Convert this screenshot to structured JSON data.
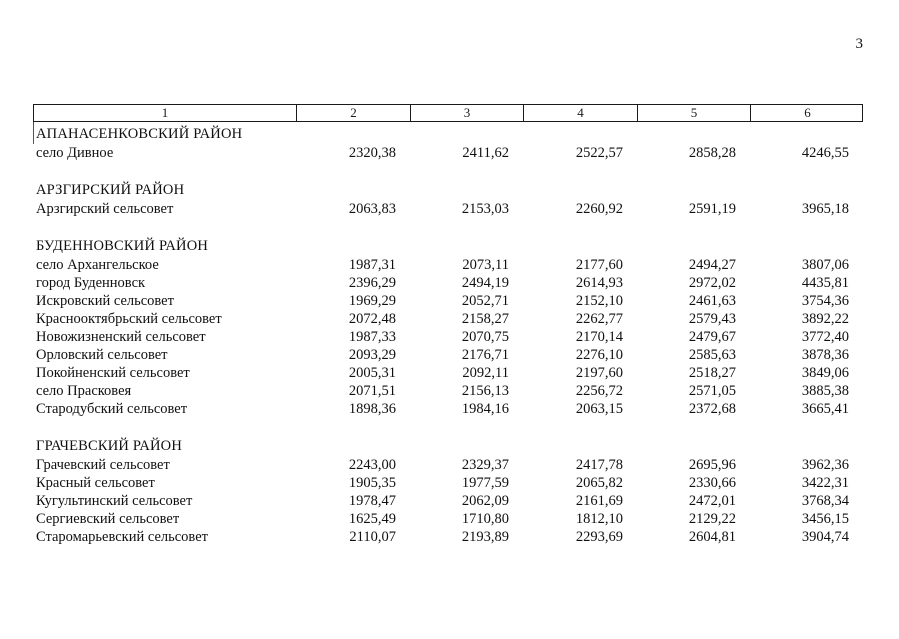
{
  "page_number": "3",
  "table": {
    "header": [
      "1",
      "2",
      "3",
      "4",
      "5",
      "6"
    ],
    "sections": [
      {
        "title": "АПАНАСЕНКОВСКИЙ РАЙОН",
        "rows": [
          {
            "name": "село Дивное",
            "values": [
              "2320,38",
              "2411,62",
              "2522,57",
              "2858,28",
              "4246,55"
            ]
          }
        ]
      },
      {
        "title": "АРЗГИРСКИЙ РАЙОН",
        "rows": [
          {
            "name": "Арзгирский сельсовет",
            "values": [
              "2063,83",
              "2153,03",
              "2260,92",
              "2591,19",
              "3965,18"
            ]
          }
        ]
      },
      {
        "title": "БУДЕННОВСКИЙ РАЙОН",
        "rows": [
          {
            "name": "село Архангельское",
            "values": [
              "1987,31",
              "2073,11",
              "2177,60",
              "2494,27",
              "3807,06"
            ]
          },
          {
            "name": "город Буденновск",
            "values": [
              "2396,29",
              "2494,19",
              "2614,93",
              "2972,02",
              "4435,81"
            ]
          },
          {
            "name": "Искровский сельсовет",
            "values": [
              "1969,29",
              "2052,71",
              "2152,10",
              "2461,63",
              "3754,36"
            ]
          },
          {
            "name": "Краснооктябрьский сельсовет",
            "values": [
              "2072,48",
              "2158,27",
              "2262,77",
              "2579,43",
              "3892,22"
            ]
          },
          {
            "name": "Новожизненский сельсовет",
            "values": [
              "1987,33",
              "2070,75",
              "2170,14",
              "2479,67",
              "3772,40"
            ]
          },
          {
            "name": "Орловский сельсовет",
            "values": [
              "2093,29",
              "2176,71",
              "2276,10",
              "2585,63",
              "3878,36"
            ]
          },
          {
            "name": "Покойненский сельсовет",
            "values": [
              "2005,31",
              "2092,11",
              "2197,60",
              "2518,27",
              "3849,06"
            ]
          },
          {
            "name": "село Прасковея",
            "values": [
              "2071,51",
              "2156,13",
              "2256,72",
              "2571,05",
              "3885,38"
            ]
          },
          {
            "name": "Стародубский сельсовет",
            "values": [
              "1898,36",
              "1984,16",
              "2063,15",
              "2372,68",
              "3665,41"
            ]
          }
        ]
      },
      {
        "title": "ГРАЧЕВСКИЙ РАЙОН",
        "rows": [
          {
            "name": "Грачевский сельсовет",
            "values": [
              "2243,00",
              "2329,37",
              "2417,78",
              "2695,96",
              "3962,36"
            ]
          },
          {
            "name": "Красный сельсовет",
            "values": [
              "1905,35",
              "1977,59",
              "2065,82",
              "2330,66",
              "3422,31"
            ]
          },
          {
            "name": "Кугультинский сельсовет",
            "values": [
              "1978,47",
              "2062,09",
              "2161,69",
              "2472,01",
              "3768,34"
            ]
          },
          {
            "name": "Сергиевский сельсовет",
            "values": [
              "1625,49",
              "1710,80",
              "1812,10",
              "2129,22",
              "3456,15"
            ]
          },
          {
            "name": "Старомарьевский сельсовет",
            "values": [
              "2110,07",
              "2193,89",
              "2293,69",
              "2604,81",
              "3904,74"
            ]
          }
        ]
      }
    ]
  }
}
